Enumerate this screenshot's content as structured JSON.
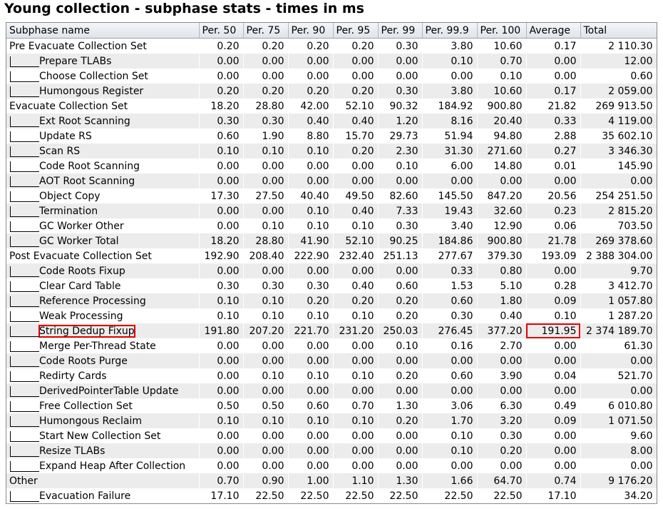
{
  "window_title": "Young collection - subphase stats - times in ms",
  "columns": [
    "Subphase name",
    "Per. 50",
    "Per. 75",
    "Per. 90",
    "Per. 95",
    "Per. 99",
    "Per. 99.9",
    "Per. 100",
    "Average",
    "Total"
  ],
  "accent_color": "#e00000",
  "rows": [
    {
      "name": "Pre Evacuate Collection Set",
      "child": false,
      "values": [
        "0.20",
        "0.20",
        "0.20",
        "0.20",
        "0.30",
        "3.80",
        "10.60",
        "0.17",
        "2 110.30"
      ]
    },
    {
      "name": "Prepare TLABs",
      "child": true,
      "values": [
        "0.00",
        "0.00",
        "0.00",
        "0.00",
        "0.00",
        "0.10",
        "0.70",
        "0.00",
        "12.00"
      ]
    },
    {
      "name": "Choose Collection Set",
      "child": true,
      "values": [
        "0.00",
        "0.00",
        "0.00",
        "0.00",
        "0.00",
        "0.00",
        "0.10",
        "0.00",
        "0.60"
      ]
    },
    {
      "name": "Humongous Register",
      "child": true,
      "values": [
        "0.20",
        "0.20",
        "0.20",
        "0.20",
        "0.30",
        "3.80",
        "10.60",
        "0.17",
        "2 059.00"
      ]
    },
    {
      "name": "Evacuate Collection Set",
      "child": false,
      "values": [
        "18.20",
        "28.80",
        "42.00",
        "52.10",
        "90.32",
        "184.92",
        "900.80",
        "21.82",
        "269 913.50"
      ]
    },
    {
      "name": "Ext Root Scanning",
      "child": true,
      "values": [
        "0.30",
        "0.30",
        "0.40",
        "0.40",
        "1.20",
        "8.16",
        "20.40",
        "0.33",
        "4 119.00"
      ]
    },
    {
      "name": "Update RS",
      "child": true,
      "values": [
        "0.60",
        "1.90",
        "8.80",
        "15.70",
        "29.73",
        "51.94",
        "94.80",
        "2.88",
        "35 602.10"
      ]
    },
    {
      "name": "Scan RS",
      "child": true,
      "values": [
        "0.10",
        "0.10",
        "0.10",
        "0.20",
        "2.30",
        "31.30",
        "271.60",
        "0.27",
        "3 346.30"
      ]
    },
    {
      "name": "Code Root Scanning",
      "child": true,
      "values": [
        "0.00",
        "0.00",
        "0.00",
        "0.00",
        "0.10",
        "6.00",
        "14.80",
        "0.01",
        "145.90"
      ]
    },
    {
      "name": "AOT Root Scanning",
      "child": true,
      "values": [
        "0.00",
        "0.00",
        "0.00",
        "0.00",
        "0.00",
        "0.00",
        "0.00",
        "0.00",
        "0.00"
      ]
    },
    {
      "name": "Object Copy",
      "child": true,
      "values": [
        "17.30",
        "27.50",
        "40.40",
        "49.50",
        "82.60",
        "145.50",
        "847.20",
        "20.56",
        "254 251.50"
      ]
    },
    {
      "name": "Termination",
      "child": true,
      "values": [
        "0.00",
        "0.00",
        "0.10",
        "0.40",
        "7.33",
        "19.43",
        "32.60",
        "0.23",
        "2 815.20"
      ]
    },
    {
      "name": "GC Worker Other",
      "child": true,
      "values": [
        "0.00",
        "0.10",
        "0.10",
        "0.10",
        "0.30",
        "3.40",
        "12.90",
        "0.06",
        "703.50"
      ]
    },
    {
      "name": "GC Worker Total",
      "child": true,
      "values": [
        "18.20",
        "28.80",
        "41.90",
        "52.10",
        "90.25",
        "184.86",
        "900.80",
        "21.78",
        "269 378.60"
      ]
    },
    {
      "name": "Post Evacuate Collection Set",
      "child": false,
      "values": [
        "192.90",
        "208.40",
        "222.90",
        "232.40",
        "251.13",
        "277.67",
        "379.30",
        "193.09",
        "2 388 304.00"
      ]
    },
    {
      "name": "Code Roots Fixup",
      "child": true,
      "values": [
        "0.00",
        "0.00",
        "0.00",
        "0.00",
        "0.00",
        "0.33",
        "0.80",
        "0.00",
        "9.70"
      ]
    },
    {
      "name": "Clear Card Table",
      "child": true,
      "values": [
        "0.30",
        "0.30",
        "0.30",
        "0.40",
        "0.60",
        "1.53",
        "5.10",
        "0.28",
        "3 412.70"
      ]
    },
    {
      "name": "Reference Processing",
      "child": true,
      "values": [
        "0.10",
        "0.10",
        "0.20",
        "0.20",
        "0.20",
        "0.60",
        "1.80",
        "0.09",
        "1 057.80"
      ]
    },
    {
      "name": "Weak Processing",
      "child": true,
      "values": [
        "0.10",
        "0.10",
        "0.10",
        "0.10",
        "0.20",
        "0.30",
        "0.40",
        "0.10",
        "1 287.20"
      ]
    },
    {
      "name": "String Dedup Fixup",
      "child": true,
      "highlight": true,
      "values": [
        "191.80",
        "207.20",
        "221.70",
        "231.20",
        "250.03",
        "276.45",
        "377.20",
        "191.95",
        "2 374 189.70"
      ]
    },
    {
      "name": "Merge Per-Thread State",
      "child": true,
      "values": [
        "0.00",
        "0.00",
        "0.00",
        "0.00",
        "0.10",
        "0.16",
        "2.70",
        "0.00",
        "61.30"
      ]
    },
    {
      "name": "Code Roots Purge",
      "child": true,
      "values": [
        "0.00",
        "0.00",
        "0.00",
        "0.00",
        "0.00",
        "0.00",
        "0.00",
        "0.00",
        "0.00"
      ]
    },
    {
      "name": "Redirty Cards",
      "child": true,
      "values": [
        "0.00",
        "0.10",
        "0.10",
        "0.10",
        "0.20",
        "0.60",
        "3.90",
        "0.04",
        "521.70"
      ]
    },
    {
      "name": "DerivedPointerTable Update",
      "child": true,
      "values": [
        "0.00",
        "0.00",
        "0.00",
        "0.00",
        "0.00",
        "0.00",
        "0.00",
        "0.00",
        "0.00"
      ]
    },
    {
      "name": "Free Collection Set",
      "child": true,
      "values": [
        "0.50",
        "0.50",
        "0.60",
        "0.70",
        "1.30",
        "3.06",
        "6.30",
        "0.49",
        "6 010.80"
      ]
    },
    {
      "name": "Humongous Reclaim",
      "child": true,
      "values": [
        "0.10",
        "0.10",
        "0.10",
        "0.10",
        "0.20",
        "1.70",
        "3.20",
        "0.09",
        "1 071.50"
      ]
    },
    {
      "name": "Start New Collection Set",
      "child": true,
      "values": [
        "0.00",
        "0.00",
        "0.00",
        "0.00",
        "0.00",
        "0.10",
        "0.30",
        "0.00",
        "9.60"
      ]
    },
    {
      "name": "Resize TLABs",
      "child": true,
      "values": [
        "0.00",
        "0.00",
        "0.00",
        "0.00",
        "0.00",
        "0.10",
        "0.20",
        "0.00",
        "8.00"
      ]
    },
    {
      "name": "Expand Heap After Collection",
      "child": true,
      "values": [
        "0.00",
        "0.00",
        "0.00",
        "0.00",
        "0.00",
        "0.00",
        "0.00",
        "0.00",
        "0.00"
      ]
    },
    {
      "name": "Other",
      "child": false,
      "values": [
        "0.70",
        "0.90",
        "1.00",
        "1.10",
        "1.30",
        "1.66",
        "64.70",
        "0.74",
        "9 176.20"
      ]
    },
    {
      "name": "Evacuation Failure",
      "child": true,
      "values": [
        "17.10",
        "22.50",
        "22.50",
        "22.50",
        "22.50",
        "22.50",
        "22.50",
        "17.10",
        "34.20"
      ]
    }
  ]
}
